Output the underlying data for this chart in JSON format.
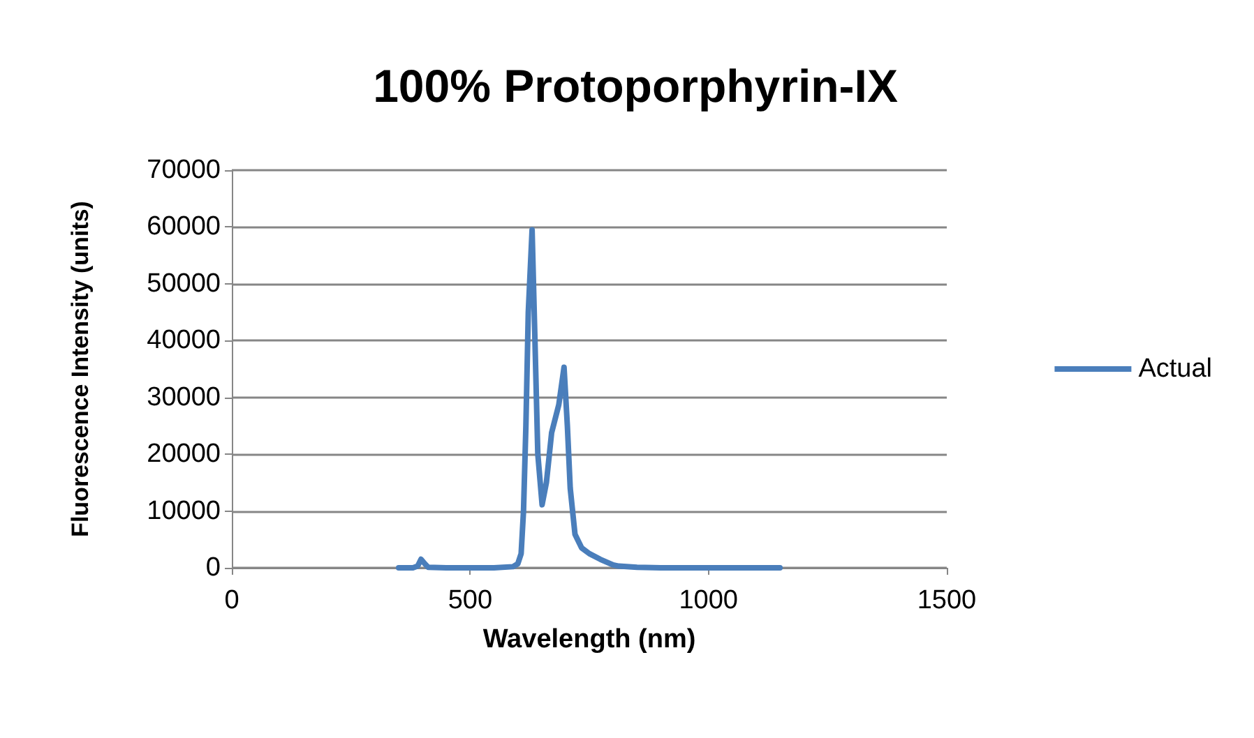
{
  "chart_data": {
    "type": "line",
    "title": "100% Protoporphyrin-IX",
    "xlabel": "Wavelength (nm)",
    "ylabel": "Fluorescence Intensity (units)",
    "x": [
      350,
      380,
      390,
      397,
      405,
      412,
      450,
      500,
      550,
      590,
      600,
      607,
      612,
      617,
      622,
      630,
      636,
      642,
      651,
      660,
      671,
      686,
      697,
      704,
      710,
      720,
      734,
      750,
      773,
      800,
      812,
      850,
      900,
      1000,
      1100,
      1150
    ],
    "series": [
      {
        "name": "Actual",
        "color": "#4a7ebb",
        "values": [
          0,
          0,
          300,
          1500,
          700,
          100,
          0,
          0,
          0,
          200,
          700,
          2500,
          10000,
          25000,
          45000,
          59500,
          40000,
          20000,
          11100,
          15000,
          23800,
          28700,
          35300,
          25000,
          14000,
          5900,
          3500,
          2500,
          1500,
          500,
          300,
          100,
          0,
          0,
          0,
          0
        ]
      }
    ],
    "xlim": [
      0,
      1500
    ],
    "xticks": [
      0,
      500,
      1000,
      1500
    ],
    "ylim": [
      0,
      70000
    ],
    "yticks": [
      0,
      10000,
      20000,
      30000,
      40000,
      50000,
      60000,
      70000
    ],
    "grid": "y",
    "legend": "right",
    "marker": "none",
    "line_style": "solid"
  }
}
